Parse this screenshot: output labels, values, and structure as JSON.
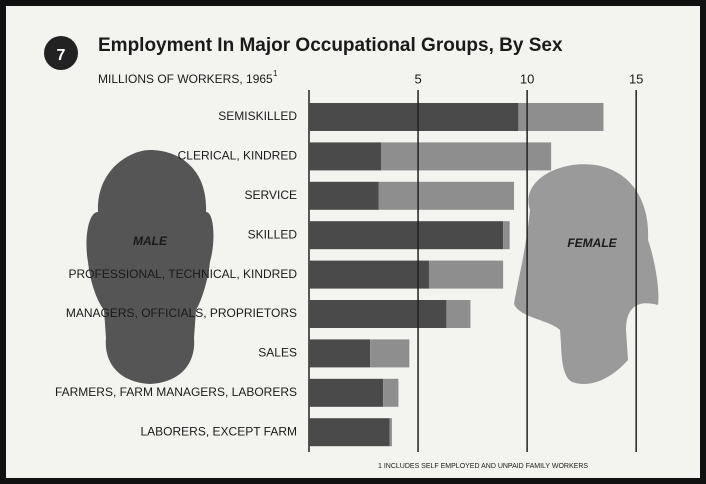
{
  "chart_data": {
    "type": "stacked-bar-horizontal",
    "chart_number": "7",
    "title": "Employment In Major Occupational Groups, By Sex",
    "subtitle": "MILLIONS OF WORKERS, 1965",
    "subtitle_marker": "1",
    "footnote": "1 INCLUDES SELF EMPLOYED AND UNPAID FAMILY WORKERS",
    "categories": [
      "SEMISKILLED",
      "CLERICAL, KINDRED",
      "SERVICE",
      "SKILLED",
      "PROFESSIONAL, TECHNICAL, KINDRED",
      "MANAGERS, OFFICIALS, PROPRIETORS",
      "SALES",
      "FARMERS, FARM MANAGERS, LABORERS",
      "LABORERS, EXCEPT FARM"
    ],
    "series": [
      {
        "name": "MALE",
        "color": "#4a4a4a",
        "values": [
          9.6,
          3.3,
          3.2,
          8.9,
          5.5,
          6.3,
          2.8,
          3.4,
          3.7
        ]
      },
      {
        "name": "FEMALE",
        "color": "#8e8e8e",
        "values": [
          3.9,
          7.8,
          6.2,
          0.3,
          3.4,
          1.1,
          1.8,
          0.7,
          0.1
        ]
      }
    ],
    "xlim": [
      0,
      16
    ],
    "xticks": [
      5,
      10,
      15
    ],
    "grid": true
  }
}
